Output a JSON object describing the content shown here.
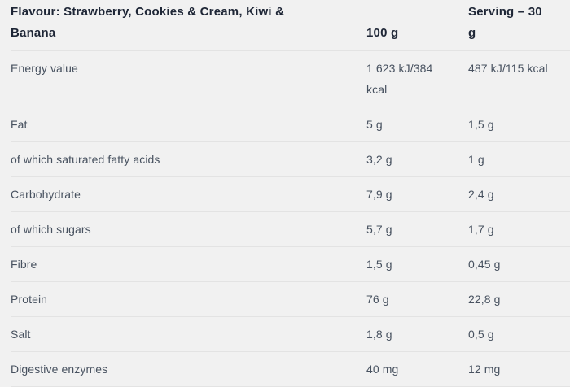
{
  "nutrition_table": {
    "header": {
      "flavour_label": "Flavour: Strawberry, Cookies & Cream, Kiwi & Banana",
      "col_100g_label": "100 g",
      "col_serving_label": "Serving – 30 g"
    },
    "rows": [
      {
        "label": "Energy value",
        "per_100g": "1 623 kJ/384 kcal",
        "per_serving": "487 kJ/115 kcal"
      },
      {
        "label": "Fat",
        "per_100g": "5 g",
        "per_serving": "1,5 g"
      },
      {
        "label": "of which saturated fatty acids",
        "per_100g": "3,2 g",
        "per_serving": "1 g"
      },
      {
        "label": "Carbohydrate",
        "per_100g": "7,9 g",
        "per_serving": "2,4 g"
      },
      {
        "label": "of which sugars",
        "per_100g": "5,7 g",
        "per_serving": "1,7 g"
      },
      {
        "label": "Fibre",
        "per_100g": "1,5 g",
        "per_serving": "0,45 g"
      },
      {
        "label": "Protein",
        "per_100g": "76 g",
        "per_serving": "22,8 g"
      },
      {
        "label": "Salt",
        "per_100g": "1,8 g",
        "per_serving": "0,5 g"
      },
      {
        "label": "Digestive enzymes",
        "per_100g": "40 mg",
        "per_serving": "12 mg"
      }
    ],
    "colors": {
      "background": "#f1f1f1",
      "header_text": "#1e2636",
      "body_text": "#485260",
      "divider": "#e3e3e3"
    }
  }
}
